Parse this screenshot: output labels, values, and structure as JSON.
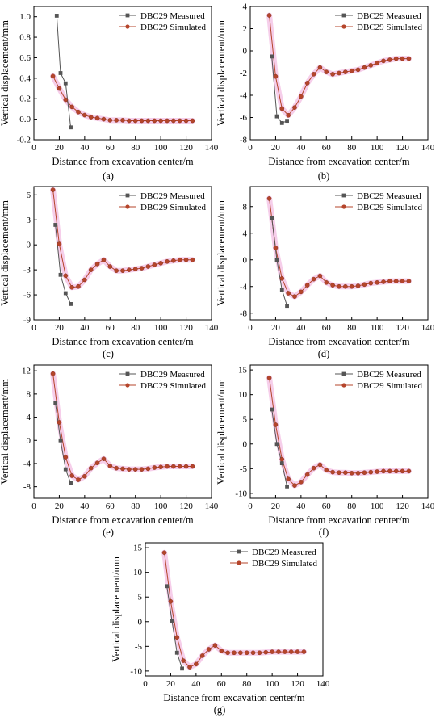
{
  "colors": {
    "measured": "#555555",
    "simulated": "#b5452b",
    "halo": "#f5c6e6",
    "axis": "#000000"
  },
  "chart_data": [
    {
      "type": "line",
      "panel_label": "(a)",
      "xlabel": "Distance from excavation center/m",
      "ylabel": "Vertical displacement/mm",
      "xlim": [
        0,
        140
      ],
      "xticks": [
        0,
        20,
        40,
        60,
        80,
        100,
        120,
        140
      ],
      "ylim": [
        -0.2,
        1.1
      ],
      "yticks": [
        -0.2,
        0.0,
        0.2,
        0.4,
        0.6,
        0.8,
        1.0
      ],
      "ytick_labels": [
        "-0.2",
        "0.0",
        "0.2",
        "0.4",
        "0.6",
        "0.8",
        "1.0"
      ],
      "legend_position": "top-right",
      "series": [
        {
          "name": "DBC29 Measured",
          "x": [
            18,
            21,
            25,
            29
          ],
          "y": [
            1.01,
            0.45,
            0.35,
            -0.08
          ]
        },
        {
          "name": "DBC29 Simulated",
          "x": [
            15,
            20,
            25,
            30,
            35,
            40,
            45,
            50,
            55,
            60,
            65,
            70,
            75,
            80,
            85,
            90,
            95,
            100,
            105,
            110,
            115,
            120,
            125
          ],
          "y": [
            0.42,
            0.3,
            0.19,
            0.12,
            0.07,
            0.04,
            0.02,
            0.01,
            0.0,
            -0.01,
            -0.01,
            -0.01,
            -0.015,
            -0.015,
            -0.015,
            -0.015,
            -0.015,
            -0.015,
            -0.015,
            -0.015,
            -0.015,
            -0.015,
            -0.015
          ]
        }
      ]
    },
    {
      "type": "line",
      "panel_label": "(b)",
      "xlabel": "Distance from excavation center/m",
      "ylabel": "Vertical displacement/mm",
      "xlim": [
        0,
        140
      ],
      "xticks": [
        0,
        20,
        40,
        60,
        80,
        100,
        120,
        140
      ],
      "ylim": [
        -8,
        4
      ],
      "yticks": [
        -8,
        -6,
        -4,
        -2,
        0,
        2,
        4
      ],
      "ytick_labels": [
        "-8",
        "-6",
        "-4",
        "-2",
        "0",
        "2",
        "4"
      ],
      "legend_position": "top-right",
      "series": [
        {
          "name": "DBC29 Measured",
          "x": [
            17,
            21,
            25,
            29
          ],
          "y": [
            -0.5,
            -5.9,
            -6.5,
            -6.3
          ]
        },
        {
          "name": "DBC29 Simulated",
          "x": [
            15,
            20,
            25,
            30,
            35,
            40,
            45,
            50,
            55,
            60,
            65,
            70,
            75,
            80,
            85,
            90,
            95,
            100,
            105,
            110,
            115,
            120,
            125
          ],
          "y": [
            3.2,
            -2.3,
            -5.2,
            -5.8,
            -5.1,
            -4.1,
            -2.9,
            -2.1,
            -1.5,
            -1.9,
            -2.1,
            -2.0,
            -1.9,
            -1.8,
            -1.7,
            -1.5,
            -1.3,
            -1.1,
            -0.9,
            -0.8,
            -0.7,
            -0.7,
            -0.7
          ]
        }
      ]
    },
    {
      "type": "line",
      "panel_label": "(c)",
      "xlabel": "Distance from excavation center/m",
      "ylabel": "Vertical displacement/mm",
      "xlim": [
        0,
        140
      ],
      "xticks": [
        0,
        20,
        40,
        60,
        80,
        100,
        120,
        140
      ],
      "ylim": [
        -9,
        7
      ],
      "yticks": [
        -9,
        -6,
        -3,
        0,
        3,
        6
      ],
      "ytick_labels": [
        "-9",
        "-6",
        "-3",
        "0",
        "3",
        "6"
      ],
      "legend_position": "top-right",
      "series": [
        {
          "name": "DBC29 Measured",
          "x": [
            17,
            21,
            25,
            29
          ],
          "y": [
            2.4,
            -3.6,
            -5.8,
            -7.1
          ]
        },
        {
          "name": "DBC29 Simulated",
          "x": [
            15,
            20,
            25,
            30,
            35,
            40,
            45,
            50,
            55,
            60,
            65,
            70,
            75,
            80,
            85,
            90,
            95,
            100,
            105,
            110,
            115,
            120,
            125
          ],
          "y": [
            6.6,
            0.1,
            -3.7,
            -5.1,
            -5.0,
            -4.2,
            -3.0,
            -2.3,
            -1.8,
            -2.6,
            -3.1,
            -3.1,
            -3.0,
            -2.9,
            -2.8,
            -2.6,
            -2.4,
            -2.2,
            -2.0,
            -1.9,
            -1.8,
            -1.8,
            -1.8
          ]
        }
      ]
    },
    {
      "type": "line",
      "panel_label": "(d)",
      "xlabel": "Distance from excavation center/m",
      "ylabel": "Vertical displacement/mm",
      "xlim": [
        0,
        140
      ],
      "xticks": [
        0,
        20,
        40,
        60,
        80,
        100,
        120,
        140
      ],
      "ylim": [
        -9,
        11
      ],
      "yticks": [
        -8,
        -4,
        0,
        4,
        8
      ],
      "ytick_labels": [
        "-8",
        "-4",
        "0",
        "4",
        "8"
      ],
      "legend_position": "top-right",
      "series": [
        {
          "name": "DBC29 Measured",
          "x": [
            17,
            21,
            25,
            29
          ],
          "y": [
            6.3,
            0.0,
            -4.5,
            -6.9
          ]
        },
        {
          "name": "DBC29 Simulated",
          "x": [
            15,
            20,
            25,
            30,
            35,
            40,
            45,
            50,
            55,
            60,
            65,
            70,
            75,
            80,
            85,
            90,
            95,
            100,
            105,
            110,
            115,
            120,
            125
          ],
          "y": [
            9.2,
            1.8,
            -2.8,
            -5.0,
            -5.5,
            -4.8,
            -3.8,
            -2.9,
            -2.4,
            -3.4,
            -3.8,
            -4.0,
            -4.0,
            -4.0,
            -3.9,
            -3.7,
            -3.5,
            -3.4,
            -3.3,
            -3.2,
            -3.2,
            -3.2,
            -3.2
          ]
        }
      ]
    },
    {
      "type": "line",
      "panel_label": "(e)",
      "xlabel": "Distance from excavation center/m",
      "ylabel": "Vertical displacement/mm",
      "xlim": [
        0,
        140
      ],
      "xticks": [
        0,
        20,
        40,
        60,
        80,
        100,
        120,
        140
      ],
      "ylim": [
        -10,
        13
      ],
      "yticks": [
        -8,
        -4,
        0,
        4,
        8,
        12
      ],
      "ytick_labels": [
        "-8",
        "-4",
        "0",
        "4",
        "8",
        "12"
      ],
      "legend_position": "top-right",
      "series": [
        {
          "name": "DBC29 Measured",
          "x": [
            17,
            21,
            25,
            29
          ],
          "y": [
            6.4,
            0.0,
            -5.0,
            -7.4
          ]
        },
        {
          "name": "DBC29 Simulated",
          "x": [
            15,
            20,
            25,
            30,
            35,
            40,
            45,
            50,
            55,
            60,
            65,
            70,
            75,
            80,
            85,
            90,
            95,
            100,
            105,
            110,
            115,
            120,
            125
          ],
          "y": [
            11.5,
            3.1,
            -2.9,
            -6.1,
            -6.8,
            -6.2,
            -4.8,
            -3.9,
            -3.2,
            -4.4,
            -4.8,
            -4.9,
            -5.0,
            -5.0,
            -5.0,
            -4.9,
            -4.7,
            -4.6,
            -4.5,
            -4.5,
            -4.5,
            -4.5,
            -4.5
          ]
        }
      ]
    },
    {
      "type": "line",
      "panel_label": "(f)",
      "xlabel": "Distance from excavation center/m",
      "ylabel": "Vertical displacement/mm",
      "xlim": [
        0,
        140
      ],
      "xticks": [
        0,
        20,
        40,
        60,
        80,
        100,
        120,
        140
      ],
      "ylim": [
        -11,
        16
      ],
      "yticks": [
        -10,
        -5,
        0,
        5,
        10,
        15
      ],
      "ytick_labels": [
        "-10",
        "-5",
        "0",
        "5",
        "10",
        "15"
      ],
      "legend_position": "top-right",
      "series": [
        {
          "name": "DBC29 Measured",
          "x": [
            17,
            21,
            25,
            29
          ],
          "y": [
            7.0,
            0.0,
            -3.9,
            -8.6
          ]
        },
        {
          "name": "DBC29 Simulated",
          "x": [
            15,
            20,
            25,
            30,
            35,
            40,
            45,
            50,
            55,
            60,
            65,
            70,
            75,
            80,
            85,
            90,
            95,
            100,
            105,
            110,
            115,
            120,
            125
          ],
          "y": [
            13.4,
            3.9,
            -3.1,
            -7.1,
            -8.4,
            -7.7,
            -6.2,
            -4.9,
            -4.2,
            -5.3,
            -5.7,
            -5.8,
            -5.8,
            -5.9,
            -5.9,
            -5.8,
            -5.7,
            -5.6,
            -5.5,
            -5.5,
            -5.5,
            -5.5,
            -5.5
          ]
        }
      ]
    },
    {
      "type": "line",
      "panel_label": "(g)",
      "xlabel": "Distance from excavation center/m",
      "ylabel": "Vertical displacement/mm",
      "xlim": [
        0,
        140
      ],
      "xticks": [
        0,
        20,
        40,
        60,
        80,
        100,
        120,
        140
      ],
      "ylim": [
        -11,
        16
      ],
      "yticks": [
        -10,
        -5,
        0,
        5,
        10,
        15
      ],
      "ytick_labels": [
        "-10",
        "-5",
        "0",
        "5",
        "10",
        "15"
      ],
      "legend_position": "top-right",
      "series": [
        {
          "name": "DBC29 Measured",
          "x": [
            17,
            21,
            25,
            29
          ],
          "y": [
            7.2,
            0.2,
            -6.3,
            -9.5
          ]
        },
        {
          "name": "DBC29 Simulated",
          "x": [
            15,
            20,
            25,
            30,
            35,
            40,
            45,
            50,
            55,
            60,
            65,
            70,
            75,
            80,
            85,
            90,
            95,
            100,
            105,
            110,
            115,
            120,
            125
          ],
          "y": [
            14.0,
            4.1,
            -3.2,
            -7.9,
            -9.2,
            -8.6,
            -6.9,
            -5.6,
            -4.8,
            -5.9,
            -6.3,
            -6.3,
            -6.3,
            -6.3,
            -6.3,
            -6.3,
            -6.2,
            -6.1,
            -6.1,
            -6.1,
            -6.1,
            -6.1,
            -6.1
          ]
        }
      ]
    }
  ]
}
